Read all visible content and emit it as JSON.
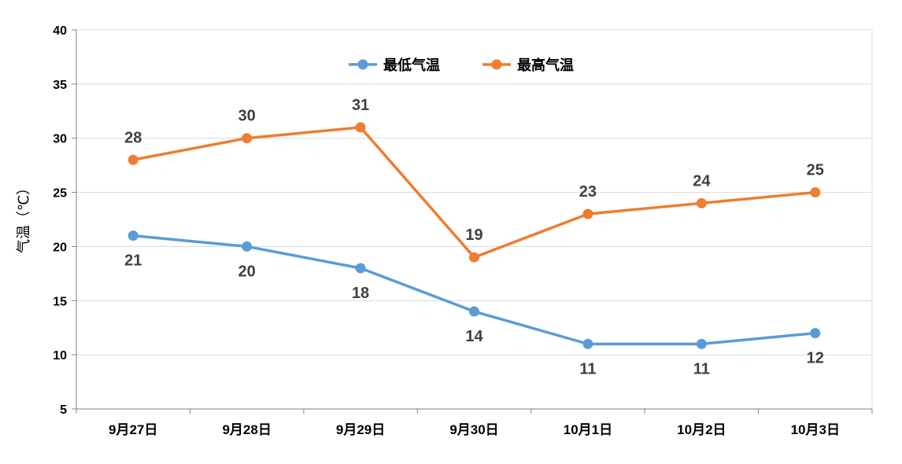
{
  "chart_data": {
    "type": "line",
    "title": "",
    "xlabel": "",
    "ylabel": "气温（℃）",
    "ylim": [
      5,
      40
    ],
    "yticks": [
      5,
      10,
      15,
      20,
      25,
      30,
      35,
      40
    ],
    "grid": true,
    "legend_position": "top-center",
    "categories": [
      "9月27日",
      "9月28日",
      "9月29日",
      "9月30日",
      "10月1日",
      "10月2日",
      "10月3日"
    ],
    "series": [
      {
        "name": "最低气温",
        "color": "#5B9BD5",
        "values": [
          21,
          20,
          18,
          14,
          11,
          11,
          12
        ],
        "label_position": "below"
      },
      {
        "name": "最高气温",
        "color": "#ED7D31",
        "values": [
          28,
          30,
          31,
          19,
          23,
          24,
          25
        ],
        "label_position": "above"
      }
    ]
  }
}
